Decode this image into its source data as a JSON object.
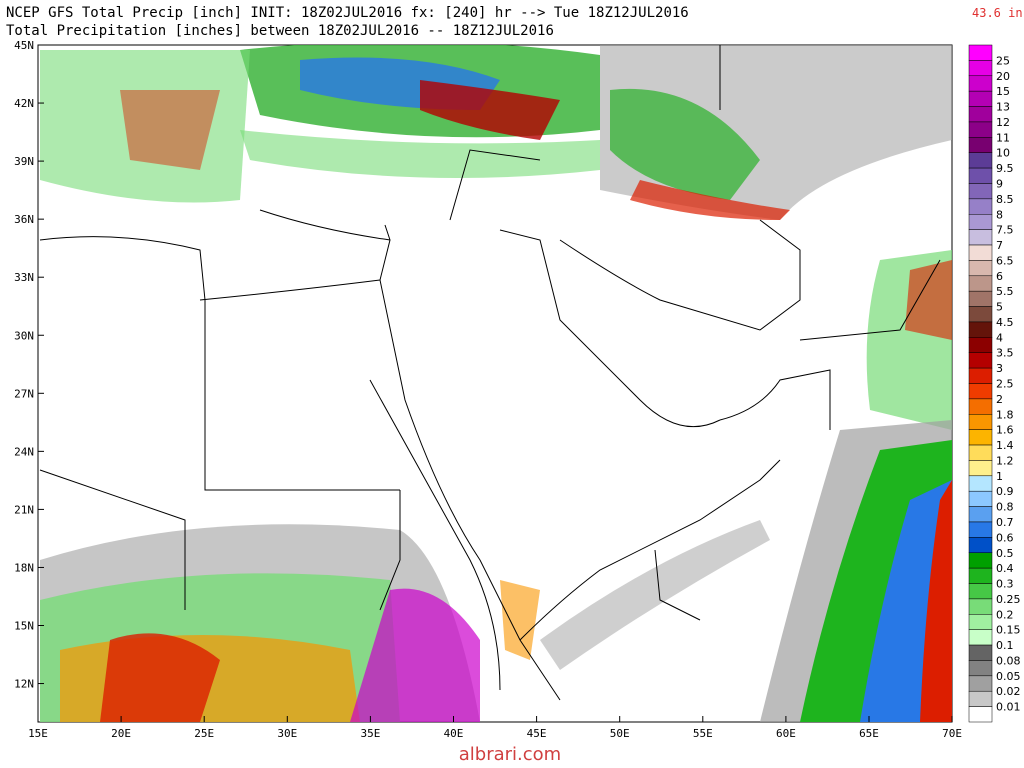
{
  "header": {
    "title": "NCEP GFS Total Precip [inch] INIT: 18Z02JUL2016 fx: [240] hr --> Tue 18Z12JUL2016",
    "subtitle": "Total Precipitation [inches] between 18Z02JUL2016 -- 18Z12JUL2016",
    "max_label": "43.6 in"
  },
  "map": {
    "lat_labels": [
      "45N",
      "42N",
      "39N",
      "36N",
      "33N",
      "30N",
      "27N",
      "24N",
      "21N",
      "18N",
      "15N",
      "12N"
    ],
    "lon_labels": [
      "15E",
      "20E",
      "25E",
      "30E",
      "35E",
      "40E",
      "45E",
      "50E",
      "55E",
      "60E",
      "65E",
      "70E"
    ]
  },
  "legend": {
    "levels": [
      25,
      20,
      15,
      13,
      12,
      11,
      10,
      9.5,
      9,
      8.5,
      8,
      7.5,
      7,
      6.5,
      6,
      5.5,
      5,
      4.5,
      4,
      3.5,
      3,
      2.5,
      2,
      1.8,
      1.6,
      1.4,
      1.2,
      1,
      0.9,
      0.8,
      0.7,
      0.6,
      0.5,
      0.4,
      0.3,
      0.25,
      0.2,
      0.15,
      0.1,
      0.08,
      0.05,
      0.02,
      0.01
    ],
    "colors": [
      "#ff00ff",
      "#e600e6",
      "#cc00cc",
      "#b400b4",
      "#a0009c",
      "#8c0088",
      "#780070",
      "#5c3c96",
      "#6e50aa",
      "#8266b8",
      "#9680c8",
      "#aa98d4",
      "#c8bedf",
      "#f2dcd6",
      "#d8b8ae",
      "#bc968a",
      "#a07468",
      "#7c4a3c",
      "#64140a",
      "#8c0000",
      "#b40000",
      "#dc1e00",
      "#f03c00",
      "#f46e00",
      "#fa9600",
      "#fcb400",
      "#ffdc5a",
      "#fff08c",
      "#b4e6ff",
      "#8cc8ff",
      "#5aa0f0",
      "#2878e6",
      "#0050c8",
      "#00a000",
      "#1eb41e",
      "#46c846",
      "#78dc78",
      "#a0f0a0",
      "#c8ffc8",
      "#646464",
      "#828282",
      "#a0a0a0",
      "#c8c8c8",
      "#ffffff"
    ]
  },
  "footer": {
    "watermark": "albrari.com"
  }
}
